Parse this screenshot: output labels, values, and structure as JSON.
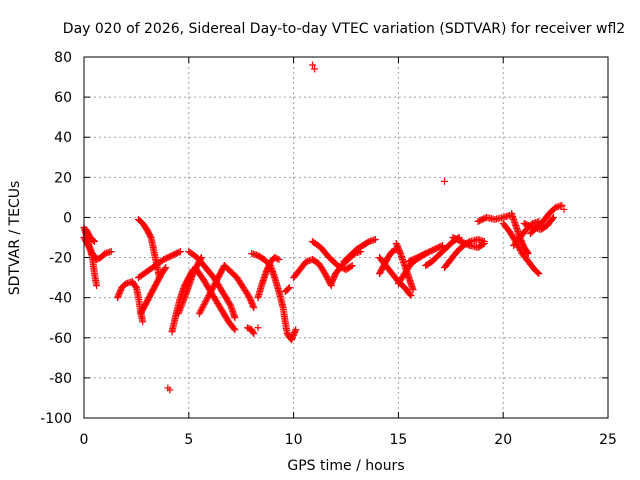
{
  "chart_data": {
    "type": "scatter",
    "title": "Day 020 of 2026, Sidereal Day-to-day VTEC variation (SDTVAR) for receiver wfl2",
    "xlabel": "GPS time / hours",
    "ylabel": "SDTVAR / TECUs",
    "xlim": [
      0,
      25
    ],
    "ylim": [
      -100,
      80
    ],
    "xticks": [
      0,
      5,
      10,
      15,
      20,
      25
    ],
    "yticks": [
      -100,
      -80,
      -60,
      -40,
      -20,
      0,
      20,
      40,
      60,
      80
    ],
    "grid": true,
    "marker": "+",
    "series_color": "#ff0000",
    "tracks": [
      [
        [
          0.0,
          -5
        ],
        [
          0.2,
          -12
        ],
        [
          0.4,
          -20
        ],
        [
          0.5,
          -28
        ],
        [
          0.6,
          -34
        ]
      ],
      [
        [
          0.0,
          -10
        ],
        [
          0.2,
          -14
        ],
        [
          0.4,
          -18
        ],
        [
          0.6,
          -21
        ],
        [
          0.8,
          -20
        ],
        [
          1.0,
          -18
        ],
        [
          1.3,
          -17
        ]
      ],
      [
        [
          0.1,
          -6
        ],
        [
          0.2,
          -8
        ],
        [
          0.3,
          -10
        ],
        [
          0.5,
          -12
        ]
      ],
      [
        [
          1.6,
          -40
        ],
        [
          1.8,
          -35
        ],
        [
          2.0,
          -33
        ],
        [
          2.3,
          -32
        ],
        [
          2.5,
          -35
        ],
        [
          2.6,
          -40
        ],
        [
          2.7,
          -47
        ],
        [
          2.8,
          -52
        ]
      ],
      [
        [
          2.6,
          -1
        ],
        [
          2.8,
          -3
        ],
        [
          3.0,
          -6
        ],
        [
          3.2,
          -10
        ],
        [
          3.3,
          -15
        ],
        [
          3.4,
          -20
        ],
        [
          3.5,
          -25
        ],
        [
          3.6,
          -30
        ]
      ],
      [
        [
          2.7,
          -48
        ],
        [
          2.9,
          -44
        ],
        [
          3.1,
          -40
        ],
        [
          3.3,
          -36
        ],
        [
          3.5,
          -32
        ],
        [
          3.7,
          -28
        ],
        [
          3.9,
          -25
        ]
      ],
      [
        [
          2.6,
          -30
        ],
        [
          3.0,
          -27
        ],
        [
          3.4,
          -24
        ],
        [
          3.8,
          -21
        ],
        [
          4.2,
          -19
        ],
        [
          4.6,
          -17
        ]
      ],
      [
        [
          4.2,
          -57
        ],
        [
          4.4,
          -48
        ],
        [
          4.6,
          -40
        ],
        [
          4.8,
          -34
        ],
        [
          5.0,
          -30
        ],
        [
          5.2,
          -26
        ]
      ],
      [
        [
          4.5,
          -48
        ],
        [
          4.8,
          -40
        ],
        [
          5.0,
          -34
        ],
        [
          5.2,
          -28
        ],
        [
          5.4,
          -24
        ],
        [
          5.6,
          -20
        ]
      ],
      [
        [
          5.0,
          -17
        ],
        [
          5.4,
          -20
        ],
        [
          5.8,
          -25
        ],
        [
          6.2,
          -30
        ],
        [
          6.6,
          -37
        ],
        [
          7.0,
          -44
        ],
        [
          7.2,
          -50
        ]
      ],
      [
        [
          5.3,
          -25
        ],
        [
          5.7,
          -31
        ],
        [
          6.1,
          -38
        ],
        [
          6.5,
          -45
        ],
        [
          6.9,
          -52
        ],
        [
          7.2,
          -56
        ]
      ],
      [
        [
          5.5,
          -48
        ],
        [
          5.8,
          -42
        ],
        [
          6.1,
          -36
        ],
        [
          6.4,
          -30
        ],
        [
          6.6,
          -26
        ],
        [
          6.7,
          -24
        ]
      ],
      [
        [
          6.7,
          -24
        ],
        [
          7.0,
          -27
        ],
        [
          7.3,
          -30
        ],
        [
          7.6,
          -35
        ],
        [
          7.9,
          -40
        ],
        [
          8.1,
          -45
        ]
      ],
      [
        [
          7.8,
          -55
        ],
        [
          8.0,
          -56
        ],
        [
          8.1,
          -58
        ]
      ],
      [
        [
          8.0,
          -18
        ],
        [
          8.3,
          -19
        ],
        [
          8.6,
          -21
        ],
        [
          8.9,
          -24
        ],
        [
          9.1,
          -30
        ],
        [
          9.3,
          -37
        ],
        [
          9.5,
          -45
        ],
        [
          9.6,
          -52
        ],
        [
          9.7,
          -58
        ],
        [
          9.9,
          -61
        ],
        [
          10.1,
          -56
        ]
      ],
      [
        [
          8.3,
          -40
        ],
        [
          8.5,
          -33
        ],
        [
          8.7,
          -27
        ],
        [
          8.9,
          -22
        ],
        [
          9.1,
          -20
        ],
        [
          9.3,
          -21
        ]
      ],
      [
        [
          9.6,
          -37
        ],
        [
          9.8,
          -35
        ]
      ],
      [
        [
          10.0,
          -30
        ],
        [
          10.3,
          -26
        ],
        [
          10.6,
          -22
        ],
        [
          10.9,
          -21
        ],
        [
          11.2,
          -23
        ],
        [
          11.5,
          -28
        ],
        [
          11.8,
          -34
        ]
      ],
      [
        [
          10.9,
          -12
        ],
        [
          11.3,
          -15
        ],
        [
          11.7,
          -20
        ],
        [
          12.1,
          -24
        ],
        [
          12.5,
          -26
        ],
        [
          12.8,
          -24
        ]
      ],
      [
        [
          11.8,
          -33
        ],
        [
          12.0,
          -28
        ],
        [
          12.3,
          -24
        ],
        [
          12.6,
          -21
        ],
        [
          12.9,
          -18
        ],
        [
          13.2,
          -17
        ]
      ],
      [
        [
          12.4,
          -22
        ],
        [
          12.7,
          -19
        ],
        [
          13.0,
          -16
        ],
        [
          13.3,
          -14
        ],
        [
          13.6,
          -12
        ],
        [
          13.9,
          -11
        ]
      ],
      [
        [
          14.1,
          -28
        ],
        [
          14.3,
          -24
        ],
        [
          14.5,
          -20
        ],
        [
          14.7,
          -17
        ],
        [
          14.9,
          -16
        ]
      ],
      [
        [
          14.1,
          -20
        ],
        [
          14.4,
          -24
        ],
        [
          14.7,
          -28
        ],
        [
          15.0,
          -32
        ],
        [
          15.3,
          -35
        ],
        [
          15.6,
          -39
        ]
      ],
      [
        [
          14.9,
          -13
        ],
        [
          15.1,
          -18
        ],
        [
          15.3,
          -24
        ],
        [
          15.5,
          -30
        ],
        [
          15.7,
          -36
        ]
      ],
      [
        [
          15.0,
          -33
        ],
        [
          15.3,
          -28
        ],
        [
          15.6,
          -23
        ],
        [
          16.0,
          -20
        ],
        [
          16.3,
          -18
        ]
      ],
      [
        [
          15.5,
          -22
        ],
        [
          15.9,
          -20
        ],
        [
          16.3,
          -18
        ],
        [
          16.7,
          -16
        ],
        [
          17.1,
          -14
        ]
      ],
      [
        [
          16.3,
          -24
        ],
        [
          16.6,
          -22
        ],
        [
          16.9,
          -19
        ],
        [
          17.2,
          -16
        ],
        [
          17.6,
          -12
        ],
        [
          17.9,
          -10
        ]
      ],
      [
        [
          17.2,
          -25
        ],
        [
          17.5,
          -21
        ],
        [
          17.8,
          -17
        ],
        [
          18.1,
          -14
        ],
        [
          18.4,
          -12
        ],
        [
          18.8,
          -11
        ],
        [
          19.1,
          -12
        ]
      ],
      [
        [
          17.6,
          -10
        ],
        [
          18.0,
          -12
        ],
        [
          18.4,
          -14
        ],
        [
          18.8,
          -15
        ],
        [
          19.1,
          -13
        ]
      ],
      [
        [
          18.8,
          -2
        ],
        [
          19.2,
          0
        ],
        [
          19.6,
          -1
        ],
        [
          20.0,
          0
        ],
        [
          20.3,
          1
        ]
      ],
      [
        [
          20.0,
          -3
        ],
        [
          20.3,
          -7
        ],
        [
          20.6,
          -12
        ],
        [
          20.9,
          -18
        ],
        [
          21.2,
          -22
        ],
        [
          21.5,
          -26
        ],
        [
          21.7,
          -28
        ]
      ],
      [
        [
          20.4,
          2
        ],
        [
          20.6,
          -4
        ],
        [
          20.8,
          -10
        ],
        [
          21.0,
          -15
        ],
        [
          21.2,
          -18
        ]
      ],
      [
        [
          20.5,
          -14
        ],
        [
          20.8,
          -10
        ],
        [
          21.1,
          -6
        ],
        [
          21.4,
          -3
        ],
        [
          21.7,
          -2
        ]
      ],
      [
        [
          21.3,
          -8
        ],
        [
          21.6,
          -5
        ],
        [
          21.9,
          -2
        ],
        [
          22.2,
          2
        ],
        [
          22.5,
          5
        ],
        [
          22.8,
          6
        ]
      ],
      [
        [
          21.0,
          -3
        ],
        [
          21.4,
          -5
        ],
        [
          21.8,
          -6
        ],
        [
          22.1,
          -4
        ],
        [
          22.4,
          0
        ]
      ]
    ],
    "isolated_points": [
      [
        10.9,
        76
      ],
      [
        11.0,
        74
      ],
      [
        4.0,
        -85
      ],
      [
        4.1,
        -86
      ],
      [
        17.2,
        18
      ],
      [
        8.3,
        -55
      ],
      [
        22.9,
        4
      ]
    ]
  }
}
